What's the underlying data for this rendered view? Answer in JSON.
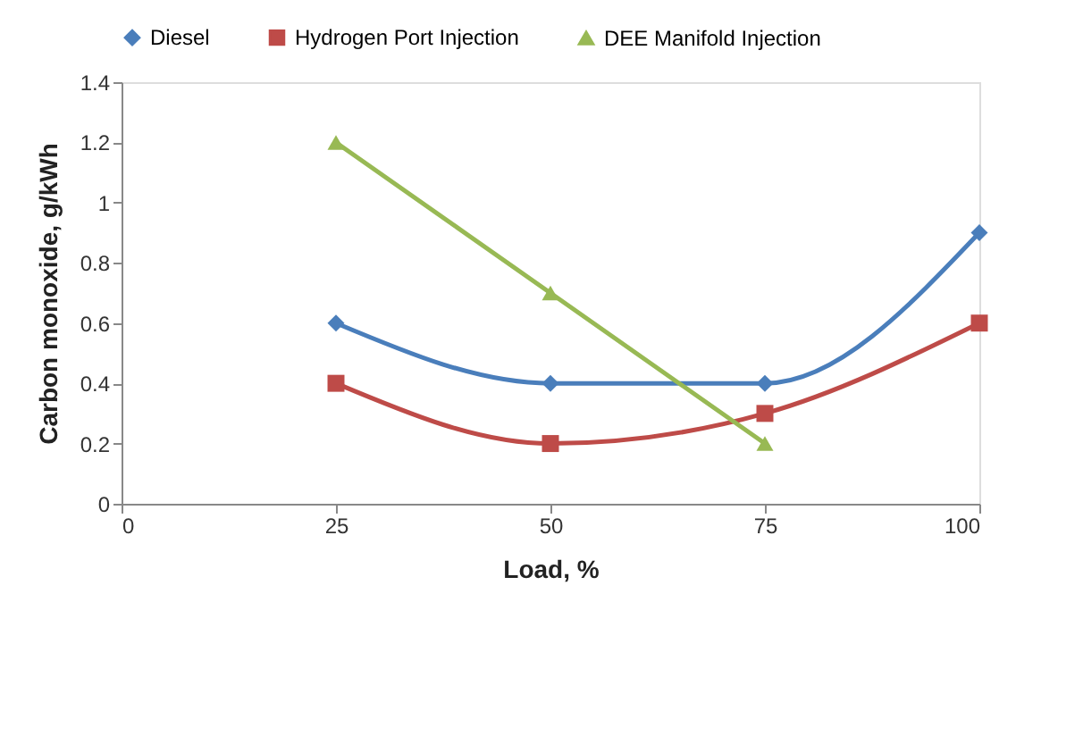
{
  "chart_data": {
    "type": "line",
    "xlabel": "Load, %",
    "ylabel": "Carbon monoxide, g/kWh",
    "x": [
      25,
      50,
      75,
      100
    ],
    "series": [
      {
        "name": "Diesel",
        "color": "#4a7ebb",
        "marker": "diamond",
        "values": [
          0.6,
          0.4,
          0.4,
          0.9
        ]
      },
      {
        "name": "Hydrogen Port Injection",
        "color": "#be4b48",
        "marker": "square",
        "values": [
          0.4,
          0.2,
          0.3,
          0.6
        ]
      },
      {
        "name": "DEE Manifold Injection",
        "color": "#98b954",
        "marker": "triangle",
        "values": [
          1.2,
          0.7,
          0.2,
          null
        ]
      }
    ],
    "xlim": [
      0,
      100
    ],
    "xticks": [
      0,
      25,
      50,
      75,
      100
    ],
    "ylim": [
      0,
      1.4
    ],
    "yticks": [
      0,
      0.2,
      0.4,
      0.6,
      0.8,
      1,
      1.2,
      1.4
    ],
    "grid": false,
    "legend": "top",
    "line_style": "solid"
  }
}
